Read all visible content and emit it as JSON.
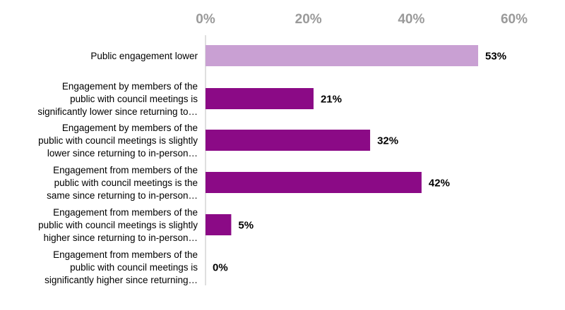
{
  "chart_data": {
    "type": "bar",
    "orientation": "horizontal",
    "title": "",
    "xlabel": "",
    "ylabel": "",
    "xlim": [
      0,
      60
    ],
    "ticks": [
      0,
      20,
      40,
      60
    ],
    "tick_labels": [
      "0%",
      "20%",
      "40%",
      "60%"
    ],
    "tick_position": "top",
    "grid": false,
    "legend": "none",
    "categories": [
      [
        "Public engagement lower"
      ],
      [
        "Engagement by members of the",
        "public with council meetings is",
        "significantly lower since returning to…"
      ],
      [
        "Engagement by members of the",
        "public with council meetings is slightly",
        "lower since returning to in-person…"
      ],
      [
        "Engagement from members of the",
        "public with council meetings is the",
        "same since returning to in-person…"
      ],
      [
        "Engagement from members of the",
        "public with council meetings is slightly",
        "higher since returning to in-person…"
      ],
      [
        "Engagement from members of the",
        "public with council meetings is",
        "significantly higher since returning…"
      ]
    ],
    "values": [
      53,
      21,
      32,
      42,
      5,
      0
    ],
    "value_labels": [
      "53%",
      "21%",
      "32%",
      "42%",
      "5%",
      "0%"
    ],
    "bar_colors": [
      "#c9a0d3",
      "#8b0a86",
      "#8b0a86",
      "#8b0a86",
      "#8b0a86",
      "#8b0a86"
    ],
    "axis_color": "#bfbfbf"
  }
}
